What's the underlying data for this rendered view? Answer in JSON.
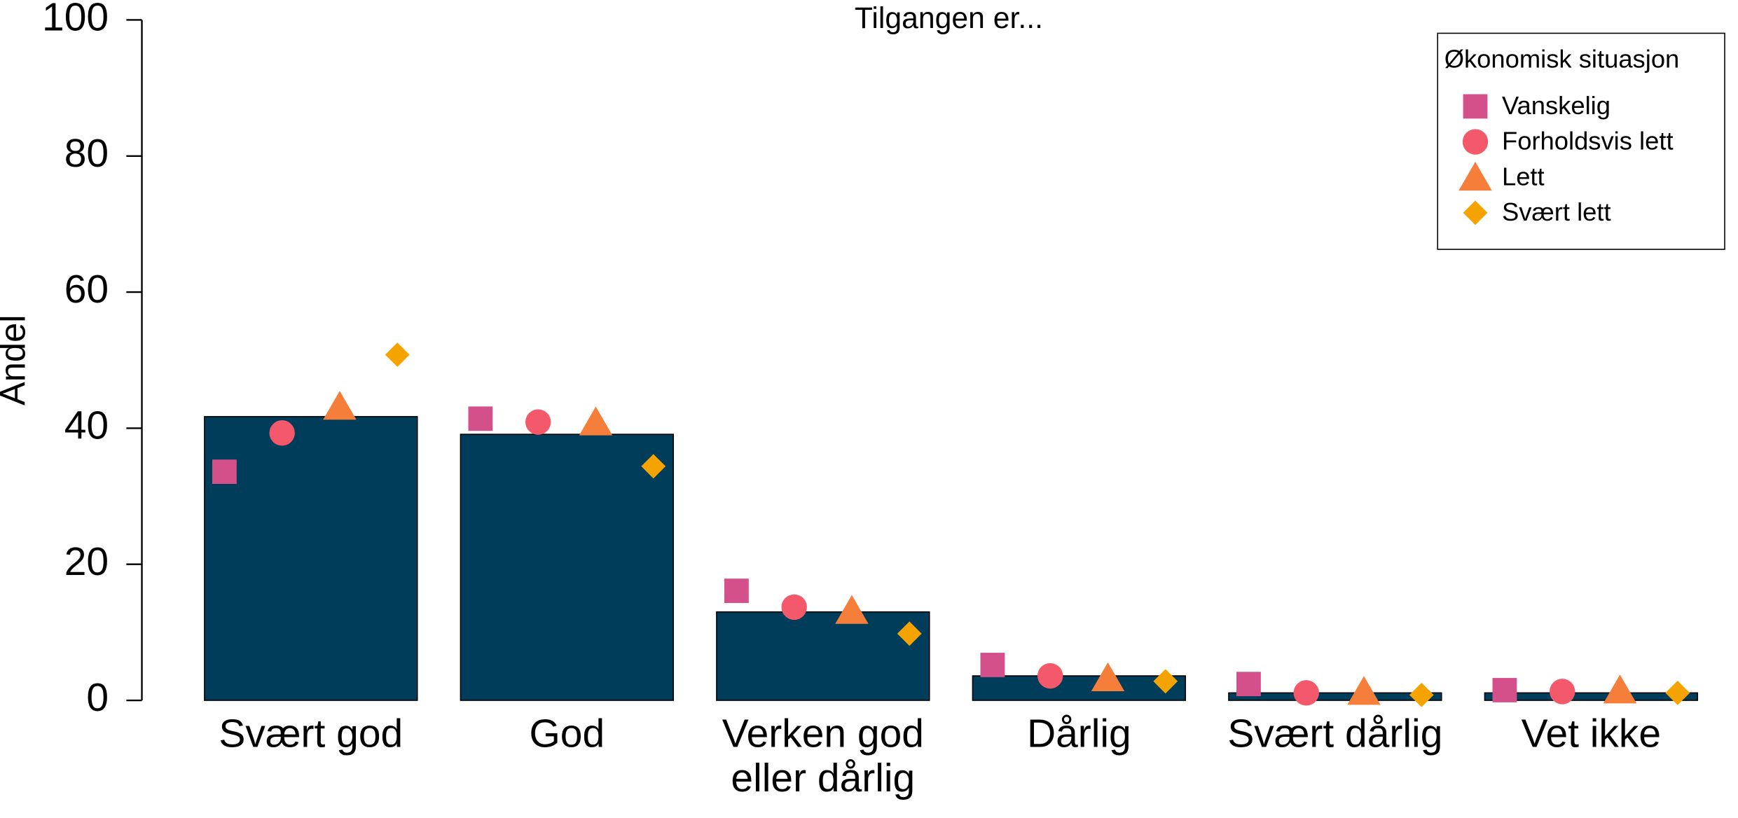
{
  "chart_data": {
    "type": "bar",
    "title": "Tilgangen er...",
    "y_label": "Andel",
    "categories": [
      "Svært god",
      "God",
      "Verken god eller dårlig",
      "Dårlig",
      "Svært dårlig",
      "Vet ikke"
    ],
    "values": [
      41.7,
      39.1,
      13.0,
      3.6,
      1.1,
      1.1
    ],
    "color": "#003d5b",
    "series": [
      {
        "name": "Vanskelig",
        "color": "#d4508a",
        "marker": "square",
        "values": [
          33.6,
          41.4,
          16.1,
          5.2,
          2.4,
          1.5
        ]
      },
      {
        "name": "Forholdsvis lett",
        "color": "#f4596b",
        "marker": "circle",
        "values": [
          39.3,
          40.9,
          13.7,
          3.6,
          1.1,
          1.3
        ]
      },
      {
        "name": "Lett",
        "color": "#f57e3a",
        "marker": "triangle",
        "values": [
          43.2,
          40.9,
          13.2,
          3.3,
          1.3,
          1.5
        ]
      },
      {
        "name": "Svært lett",
        "color": "#f5a300",
        "marker": "diamond",
        "values": [
          50.8,
          34.4,
          9.8,
          2.8,
          0.8,
          1.1
        ]
      }
    ],
    "legend_title": "Økonomisk situasjon",
    "legend_position": "top-right",
    "ylim": [
      0,
      100
    ],
    "yticks": [
      0,
      20,
      40,
      60,
      80,
      100
    ],
    "grid": false
  }
}
